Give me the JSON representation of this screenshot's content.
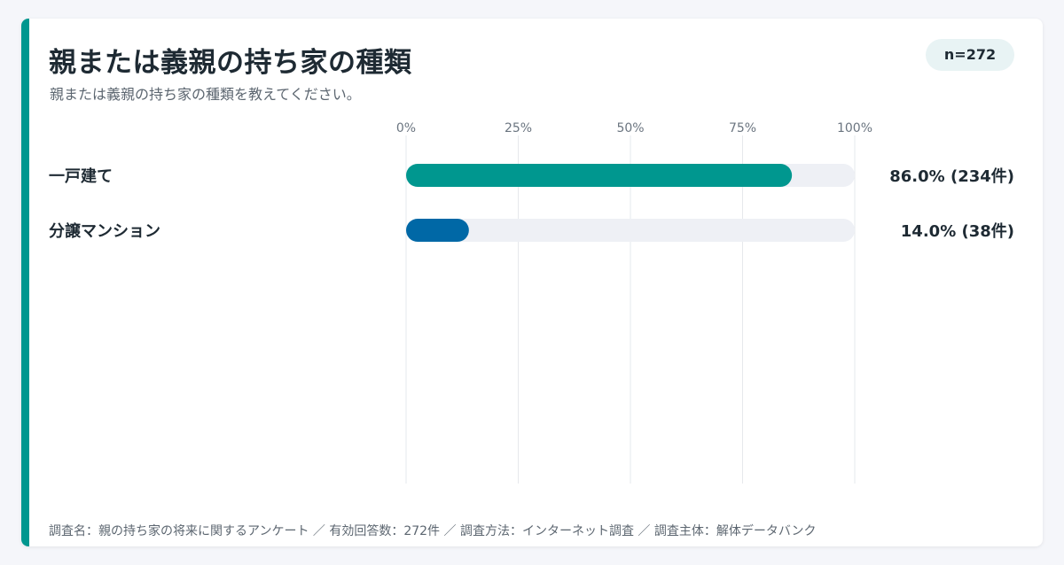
{
  "header": {
    "title": "親または義親の持ち家の種類",
    "subtitle": "親または義親の持ち家の種類を教えてください。",
    "sample_size": "n=272"
  },
  "footer": {
    "note": "調査名：親の持ち家の将来に関するアンケート ／ 有効回答数：272件 ／ 調査方法：インターネット調査 ／ 調査主体：解体データバンク"
  },
  "colors": {
    "accent": "#00978f",
    "track": "#eef0f5",
    "grid": "#e6e8ec"
  },
  "chart_data": {
    "type": "bar",
    "orientation": "horizontal",
    "xlim": [
      0,
      100
    ],
    "ticks": [
      "0%",
      "25%",
      "50%",
      "75%",
      "100%"
    ],
    "grid": true,
    "categories": [
      "一戸建て",
      "分譲マンション"
    ],
    "values": [
      86.0,
      14.0
    ],
    "value_labels": [
      "86.0% (234件)",
      "14.0% (38件)"
    ],
    "bar_colors": [
      "#00978f",
      "#0068a6"
    ]
  }
}
